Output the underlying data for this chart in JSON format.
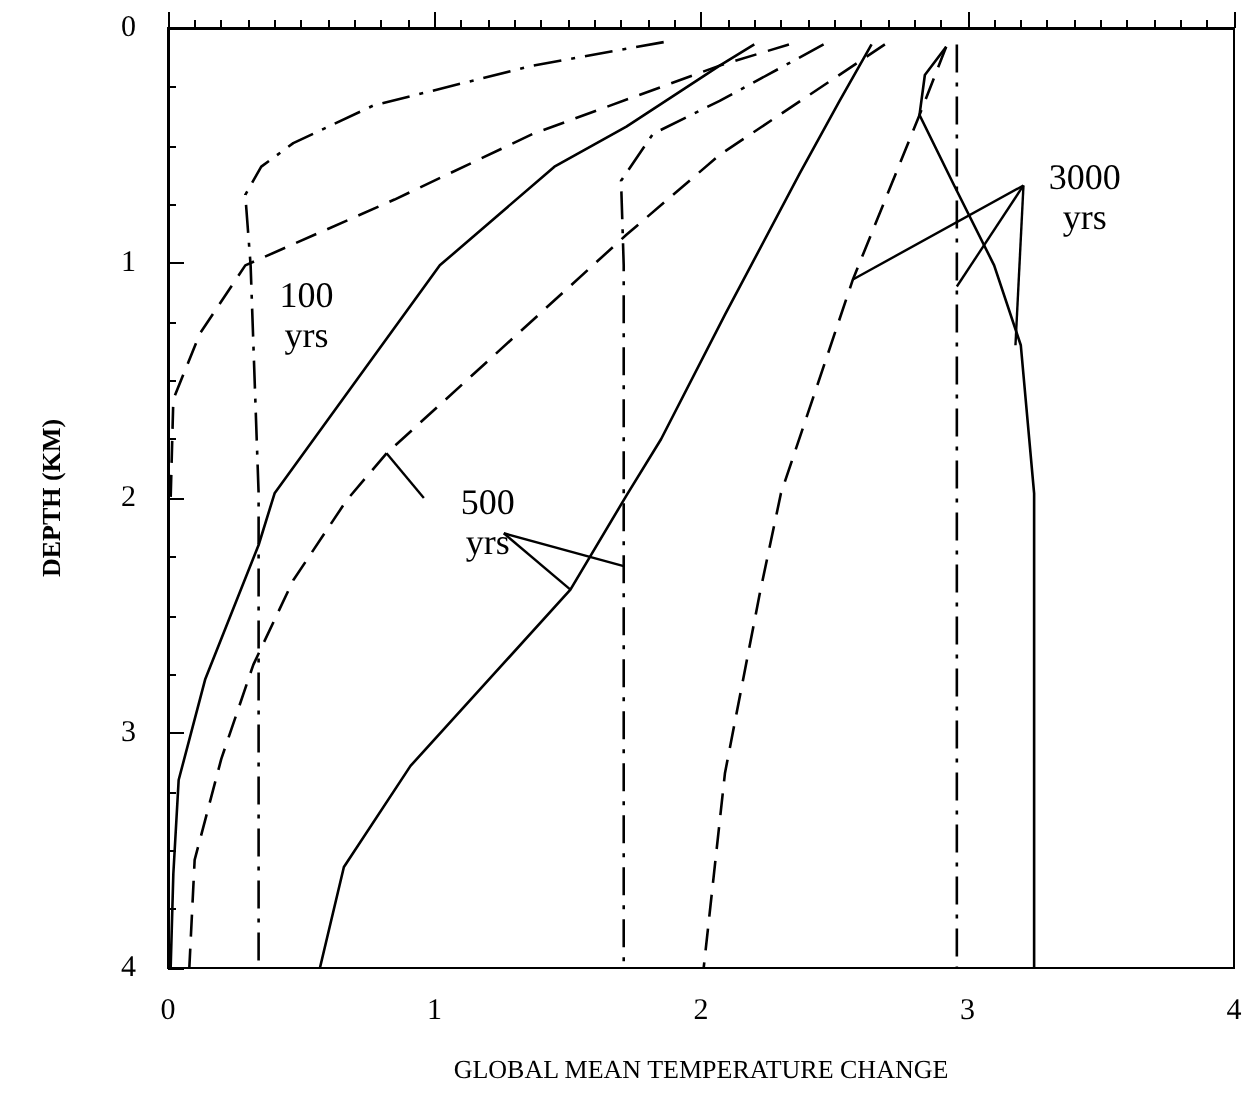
{
  "chart_data": {
    "type": "line",
    "xlabel": "GLOBAL MEAN TEMPERATURE CHANGE",
    "ylabel": "DEPTH (KM)",
    "xlim": [
      0,
      4
    ],
    "xticks": [
      0,
      1,
      2,
      3,
      4
    ],
    "ylim": [
      4,
      0
    ],
    "yticks": [
      0,
      1,
      2,
      3,
      4
    ],
    "grid": false,
    "marker": "none",
    "annotations": [
      "100 yrs",
      {
        "text": "500 yrs",
        "x": 0.82,
        "y": 1.81
      },
      {
        "text": "3000 yrs",
        "x": 2.57,
        "y": 1.07
      }
    ],
    "series": [
      {
        "color": "#000000",
        "line_style": "dashdot",
        "x": [
          1.86,
          1.37,
          0.77,
          0.47,
          0.35,
          0.29,
          0.31,
          0.34,
          0.34
        ],
        "values": [
          0.06,
          0.16,
          0.33,
          0.49,
          0.59,
          0.71,
          1.01,
          1.98,
          4.0
        ]
      },
      {
        "color": "#000000",
        "line_style": "dashed",
        "x": [
          2.33,
          2.07,
          1.37,
          0.85,
          0.29,
          0.12,
          0.02,
          0.01
        ],
        "values": [
          0.07,
          0.16,
          0.45,
          0.73,
          1.01,
          1.3,
          1.58,
          2.0
        ]
      },
      {
        "color": "#000000",
        "line_style": "solid",
        "x": [
          2.2,
          2.07,
          1.72,
          1.45,
          1.02,
          0.4,
          0.34,
          0.14,
          0.04,
          0.02,
          0.01
        ],
        "values": [
          0.07,
          0.16,
          0.42,
          0.59,
          1.01,
          1.98,
          2.2,
          2.77,
          3.2,
          3.6,
          4.0
        ]
      },
      {
        "color": "#000000",
        "line_style": "dashdot",
        "x": [
          2.46,
          2.07,
          1.82,
          1.7,
          1.71,
          1.71
        ],
        "values": [
          0.07,
          0.31,
          0.45,
          0.65,
          1.01,
          4.0
        ]
      },
      {
        "color": "#000000",
        "line_style": "dashed",
        "x": [
          2.69,
          2.07,
          1.72,
          0.82,
          0.67,
          0.47,
          0.32,
          0.2,
          0.1,
          0.08
        ],
        "values": [
          0.07,
          0.54,
          0.88,
          1.81,
          2.01,
          2.35,
          2.71,
          3.11,
          3.54,
          4.0
        ]
      },
      {
        "color": "#000000",
        "line_style": "solid",
        "x": [
          2.64,
          2.52,
          2.37,
          2.09,
          1.85,
          1.72,
          1.51,
          1.27,
          0.91,
          0.66,
          0.57
        ],
        "values": [
          0.07,
          0.31,
          0.62,
          1.22,
          1.75,
          1.99,
          2.39,
          2.69,
          3.14,
          3.57,
          4.0
        ]
      },
      {
        "color": "#000000",
        "line_style": "dashed",
        "x": [
          2.92,
          2.82,
          2.57,
          2.3,
          2.22,
          2.09,
          2.01
        ],
        "values": [
          0.08,
          0.37,
          1.07,
          1.98,
          2.41,
          3.17,
          4.0
        ]
      },
      {
        "color": "#000000",
        "line_style": "dashdot",
        "x": [
          2.96,
          2.96
        ],
        "values": [
          0.07,
          4.0
        ]
      },
      {
        "color": "#000000",
        "line_style": "solid",
        "x": [
          2.92,
          2.84,
          2.82,
          2.95,
          3.1,
          3.2,
          3.25,
          3.25
        ],
        "values": [
          0.08,
          0.2,
          0.37,
          0.67,
          1.01,
          1.35,
          1.98,
          4.0
        ]
      }
    ]
  }
}
